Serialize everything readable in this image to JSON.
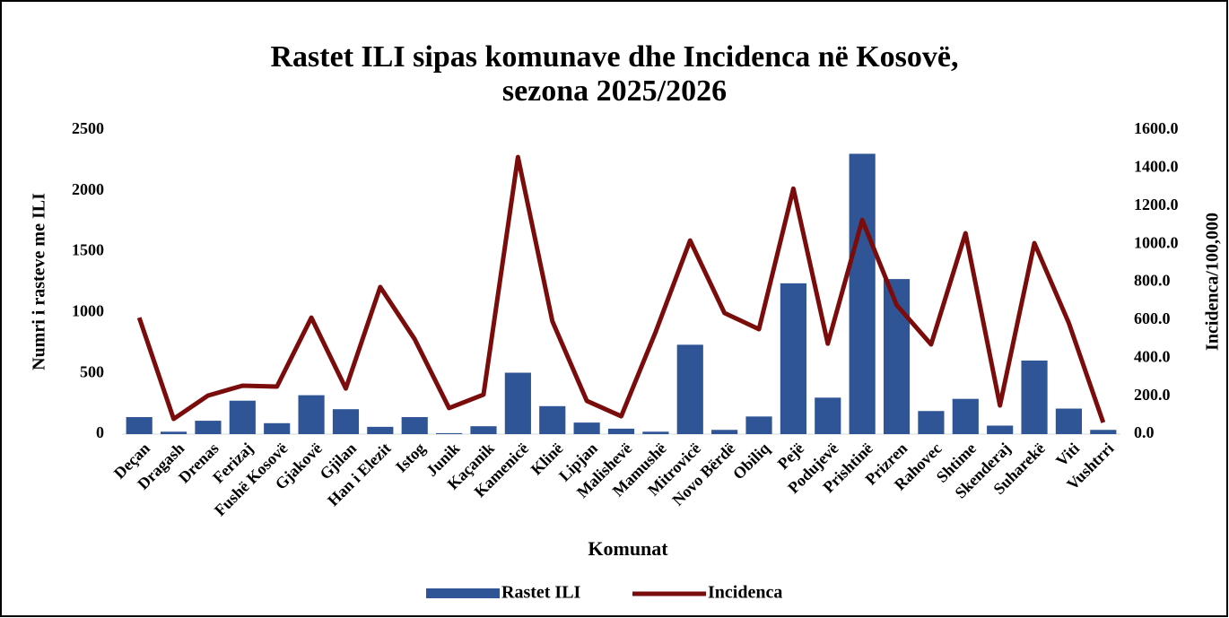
{
  "chart_data": {
    "type": "bar-line",
    "title": "Rastet ILI sipas komunave dhe Incidenca në Kosovë,",
    "subtitle": "sezona 2025/2026",
    "x_label": "Komunat",
    "y_label": "Numri i rasteve me ILI",
    "y2_label": "Incidenca/100,000",
    "categories": [
      "Deçan",
      "Dragash",
      "Drenas",
      "Ferizaj",
      "Fushë Kosovë",
      "Gjakovë",
      "Gjilan",
      "Han i Elezit",
      "Istog",
      "Junik",
      "Kaçanik",
      "Kamenicë",
      "Klinë",
      "Lipjan",
      "Malishevë",
      "Mamushë",
      "Mitrovicë",
      "Novo Bërdë",
      "Obiliq",
      "Pejë",
      "Podujevë",
      "Prishtinë",
      "Prizren",
      "Rahovec",
      "Shtime",
      "Skenderaj",
      "Suharekë",
      "Viti",
      "Vushtrri"
    ],
    "series": [
      {
        "name": "Rastet ILI",
        "type": "bar",
        "color": "#2f5597",
        "values": [
          140,
          20,
          110,
          275,
          90,
          320,
          205,
          60,
          140,
          8,
          65,
          505,
          230,
          95,
          45,
          20,
          735,
          35,
          145,
          1240,
          300,
          2305,
          1275,
          190,
          290,
          70,
          605,
          210,
          35
        ]
      },
      {
        "name": "Incidenca",
        "type": "line",
        "axis": "y2",
        "color": "#7b0c0c",
        "values": [
          613,
          80,
          203,
          255,
          250,
          613,
          240,
          774,
          500,
          137,
          208,
          1458,
          594,
          175,
          94,
          538,
          1019,
          637,
          552,
          1292,
          476,
          1127,
          679,
          472,
          1057,
          151,
          1005,
          585,
          61
        ]
      }
    ],
    "ylim": [
      0,
      2500
    ],
    "yticks": [
      0,
      500,
      1000,
      1500,
      2000,
      2500
    ],
    "y2lim": [
      0,
      1600
    ],
    "y2ticks": [
      {
        "value": 0,
        "label": "0.0"
      },
      {
        "value": 200,
        "label": "200.0"
      },
      {
        "value": 400,
        "label": "400.0"
      },
      {
        "value": 600,
        "label": "600.0"
      },
      {
        "value": 800,
        "label": "800.0"
      },
      {
        "value": 1000,
        "label": "1000.0"
      },
      {
        "value": 1200,
        "label": "1200.0"
      },
      {
        "value": 1400,
        "label": "1400.0"
      },
      {
        "value": 1600,
        "label": "1600.0"
      }
    ],
    "legend": "bottom"
  }
}
